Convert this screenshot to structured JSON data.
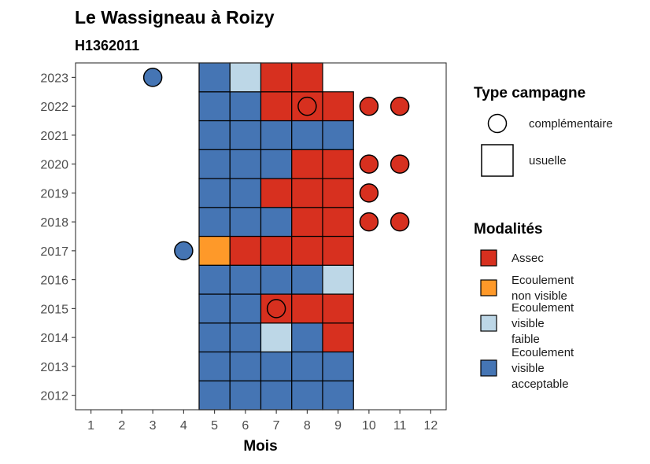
{
  "chart_data": {
    "type": "heatmap",
    "title": "Le Wassigneau à Roizy",
    "subtitle": "H1362011",
    "xlabel": "Mois",
    "ylabel": "",
    "x_ticks": [
      1,
      2,
      3,
      4,
      5,
      6,
      7,
      8,
      9,
      10,
      11,
      12
    ],
    "y_ticks": [
      2012,
      2013,
      2014,
      2015,
      2016,
      2017,
      2018,
      2019,
      2020,
      2021,
      2022,
      2023
    ],
    "xlim": [
      0.5,
      12.5
    ],
    "ylim": [
      2011.5,
      2023.5
    ],
    "grid": false,
    "legend_placement": "right",
    "colors": {
      "Assec": "#d7301f",
      "Ecoulement non visible": "#fe9929",
      "Ecoulement visible faible": "#bdd7e7",
      "Ecoulement visible acceptable": "#4575b4"
    },
    "legend_campagne": {
      "title": "Type campagne",
      "items": [
        {
          "shape": "circle",
          "label": "complémentaire"
        },
        {
          "shape": "square",
          "label": "usuelle"
        }
      ]
    },
    "legend_modalites": {
      "title": "Modalités",
      "items": [
        {
          "key": "Assec",
          "lines": [
            "Assec"
          ]
        },
        {
          "key": "Ecoulement non visible",
          "lines": [
            "Ecoulement",
            "non visible"
          ]
        },
        {
          "key": "Ecoulement visible faible",
          "lines": [
            "Ecoulement",
            "visible",
            "faible"
          ]
        },
        {
          "key": "Ecoulement visible acceptable",
          "lines": [
            "Ecoulement",
            "visible",
            "acceptable"
          ]
        }
      ]
    },
    "usuelle": [
      {
        "year": 2012,
        "month": 5,
        "modalite": "Ecoulement visible acceptable"
      },
      {
        "year": 2012,
        "month": 6,
        "modalite": "Ecoulement visible acceptable"
      },
      {
        "year": 2012,
        "month": 7,
        "modalite": "Ecoulement visible acceptable"
      },
      {
        "year": 2012,
        "month": 8,
        "modalite": "Ecoulement visible acceptable"
      },
      {
        "year": 2012,
        "month": 9,
        "modalite": "Ecoulement visible acceptable"
      },
      {
        "year": 2013,
        "month": 5,
        "modalite": "Ecoulement visible acceptable"
      },
      {
        "year": 2013,
        "month": 6,
        "modalite": "Ecoulement visible acceptable"
      },
      {
        "year": 2013,
        "month": 7,
        "modalite": "Ecoulement visible acceptable"
      },
      {
        "year": 2013,
        "month": 8,
        "modalite": "Ecoulement visible acceptable"
      },
      {
        "year": 2013,
        "month": 9,
        "modalite": "Ecoulement visible acceptable"
      },
      {
        "year": 2014,
        "month": 5,
        "modalite": "Ecoulement visible acceptable"
      },
      {
        "year": 2014,
        "month": 6,
        "modalite": "Ecoulement visible acceptable"
      },
      {
        "year": 2014,
        "month": 7,
        "modalite": "Ecoulement visible faible"
      },
      {
        "year": 2014,
        "month": 8,
        "modalite": "Ecoulement visible acceptable"
      },
      {
        "year": 2014,
        "month": 9,
        "modalite": "Assec"
      },
      {
        "year": 2015,
        "month": 5,
        "modalite": "Ecoulement visible acceptable"
      },
      {
        "year": 2015,
        "month": 6,
        "modalite": "Ecoulement visible acceptable"
      },
      {
        "year": 2015,
        "month": 7,
        "modalite": "Assec"
      },
      {
        "year": 2015,
        "month": 8,
        "modalite": "Assec"
      },
      {
        "year": 2015,
        "month": 9,
        "modalite": "Assec"
      },
      {
        "year": 2016,
        "month": 5,
        "modalite": "Ecoulement visible acceptable"
      },
      {
        "year": 2016,
        "month": 6,
        "modalite": "Ecoulement visible acceptable"
      },
      {
        "year": 2016,
        "month": 7,
        "modalite": "Ecoulement visible acceptable"
      },
      {
        "year": 2016,
        "month": 8,
        "modalite": "Ecoulement visible acceptable"
      },
      {
        "year": 2016,
        "month": 9,
        "modalite": "Ecoulement visible faible"
      },
      {
        "year": 2017,
        "month": 5,
        "modalite": "Ecoulement non visible"
      },
      {
        "year": 2017,
        "month": 6,
        "modalite": "Assec"
      },
      {
        "year": 2017,
        "month": 7,
        "modalite": "Assec"
      },
      {
        "year": 2017,
        "month": 8,
        "modalite": "Assec"
      },
      {
        "year": 2017,
        "month": 9,
        "modalite": "Assec"
      },
      {
        "year": 2018,
        "month": 5,
        "modalite": "Ecoulement visible acceptable"
      },
      {
        "year": 2018,
        "month": 6,
        "modalite": "Ecoulement visible acceptable"
      },
      {
        "year": 2018,
        "month": 7,
        "modalite": "Ecoulement visible acceptable"
      },
      {
        "year": 2018,
        "month": 8,
        "modalite": "Assec"
      },
      {
        "year": 2018,
        "month": 9,
        "modalite": "Assec"
      },
      {
        "year": 2019,
        "month": 5,
        "modalite": "Ecoulement visible acceptable"
      },
      {
        "year": 2019,
        "month": 6,
        "modalite": "Ecoulement visible acceptable"
      },
      {
        "year": 2019,
        "month": 7,
        "modalite": "Assec"
      },
      {
        "year": 2019,
        "month": 8,
        "modalite": "Assec"
      },
      {
        "year": 2019,
        "month": 9,
        "modalite": "Assec"
      },
      {
        "year": 2020,
        "month": 5,
        "modalite": "Ecoulement visible acceptable"
      },
      {
        "year": 2020,
        "month": 6,
        "modalite": "Ecoulement visible acceptable"
      },
      {
        "year": 2020,
        "month": 7,
        "modalite": "Ecoulement visible acceptable"
      },
      {
        "year": 2020,
        "month": 8,
        "modalite": "Assec"
      },
      {
        "year": 2020,
        "month": 9,
        "modalite": "Assec"
      },
      {
        "year": 2021,
        "month": 5,
        "modalite": "Ecoulement visible acceptable"
      },
      {
        "year": 2021,
        "month": 6,
        "modalite": "Ecoulement visible acceptable"
      },
      {
        "year": 2021,
        "month": 7,
        "modalite": "Ecoulement visible acceptable"
      },
      {
        "year": 2021,
        "month": 8,
        "modalite": "Ecoulement visible acceptable"
      },
      {
        "year": 2021,
        "month": 9,
        "modalite": "Ecoulement visible acceptable"
      },
      {
        "year": 2022,
        "month": 5,
        "modalite": "Ecoulement visible acceptable"
      },
      {
        "year": 2022,
        "month": 6,
        "modalite": "Ecoulement visible acceptable"
      },
      {
        "year": 2022,
        "month": 7,
        "modalite": "Assec"
      },
      {
        "year": 2022,
        "month": 8,
        "modalite": "Assec"
      },
      {
        "year": 2022,
        "month": 9,
        "modalite": "Assec"
      },
      {
        "year": 2023,
        "month": 5,
        "modalite": "Ecoulement visible acceptable"
      },
      {
        "year": 2023,
        "month": 6,
        "modalite": "Ecoulement visible faible"
      },
      {
        "year": 2023,
        "month": 7,
        "modalite": "Assec"
      },
      {
        "year": 2023,
        "month": 8,
        "modalite": "Assec"
      }
    ],
    "complementaire": [
      {
        "year": 2023,
        "month": 3,
        "modalite": "Ecoulement visible acceptable"
      },
      {
        "year": 2022,
        "month": 8,
        "modalite": "Assec"
      },
      {
        "year": 2022,
        "month": 10,
        "modalite": "Assec"
      },
      {
        "year": 2022,
        "month": 11,
        "modalite": "Assec"
      },
      {
        "year": 2020,
        "month": 10,
        "modalite": "Assec"
      },
      {
        "year": 2020,
        "month": 11,
        "modalite": "Assec"
      },
      {
        "year": 2019,
        "month": 10,
        "modalite": "Assec"
      },
      {
        "year": 2018,
        "month": 10,
        "modalite": "Assec"
      },
      {
        "year": 2018,
        "month": 11,
        "modalite": "Assec"
      },
      {
        "year": 2017,
        "month": 4,
        "modalite": "Ecoulement visible acceptable"
      },
      {
        "year": 2015,
        "month": 7,
        "modalite": "Assec"
      }
    ]
  }
}
